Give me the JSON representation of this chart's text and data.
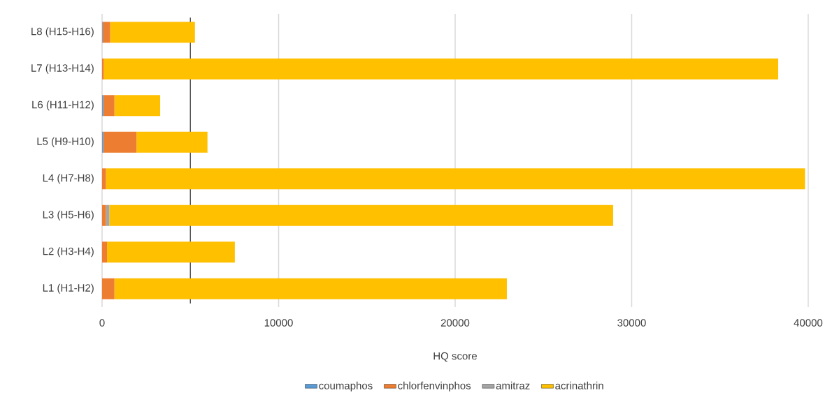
{
  "chart_data": {
    "type": "bar",
    "orientation": "horizontal",
    "stacked": true,
    "xlabel": "HQ score",
    "categories": [
      "L8 (H15-H16)",
      "L7 (H13-H14)",
      "L6 (H11-H12)",
      "L5 (H9-H10)",
      "L4 (H7-H8)",
      "L3 (H5-H6)",
      "L2 (H3-H4)",
      "L1 (H1-H2)"
    ],
    "series": [
      {
        "name": "coumaphos",
        "color": "#5b9bd5",
        "values": [
          30,
          0,
          70,
          70,
          0,
          0,
          0,
          0
        ]
      },
      {
        "name": "chlorfenvinphos",
        "color": "#ed7d31",
        "values": [
          430,
          100,
          630,
          1880,
          220,
          220,
          280,
          700
        ]
      },
      {
        "name": "amitraz",
        "color": "#a5a5a5",
        "values": [
          0,
          0,
          0,
          0,
          0,
          190,
          0,
          0
        ]
      },
      {
        "name": "acrinathrin",
        "color": "#ffc000",
        "values": [
          4800,
          38200,
          2590,
          4020,
          39600,
          28540,
          7240,
          22230
        ]
      }
    ],
    "xlim": [
      0,
      40000
    ],
    "xticks": [
      0,
      10000,
      20000,
      30000,
      40000
    ],
    "grid": "x",
    "legend": "bottom",
    "ref_lines": [
      {
        "axis": "x",
        "value": 5000,
        "color": "#404040"
      }
    ]
  }
}
